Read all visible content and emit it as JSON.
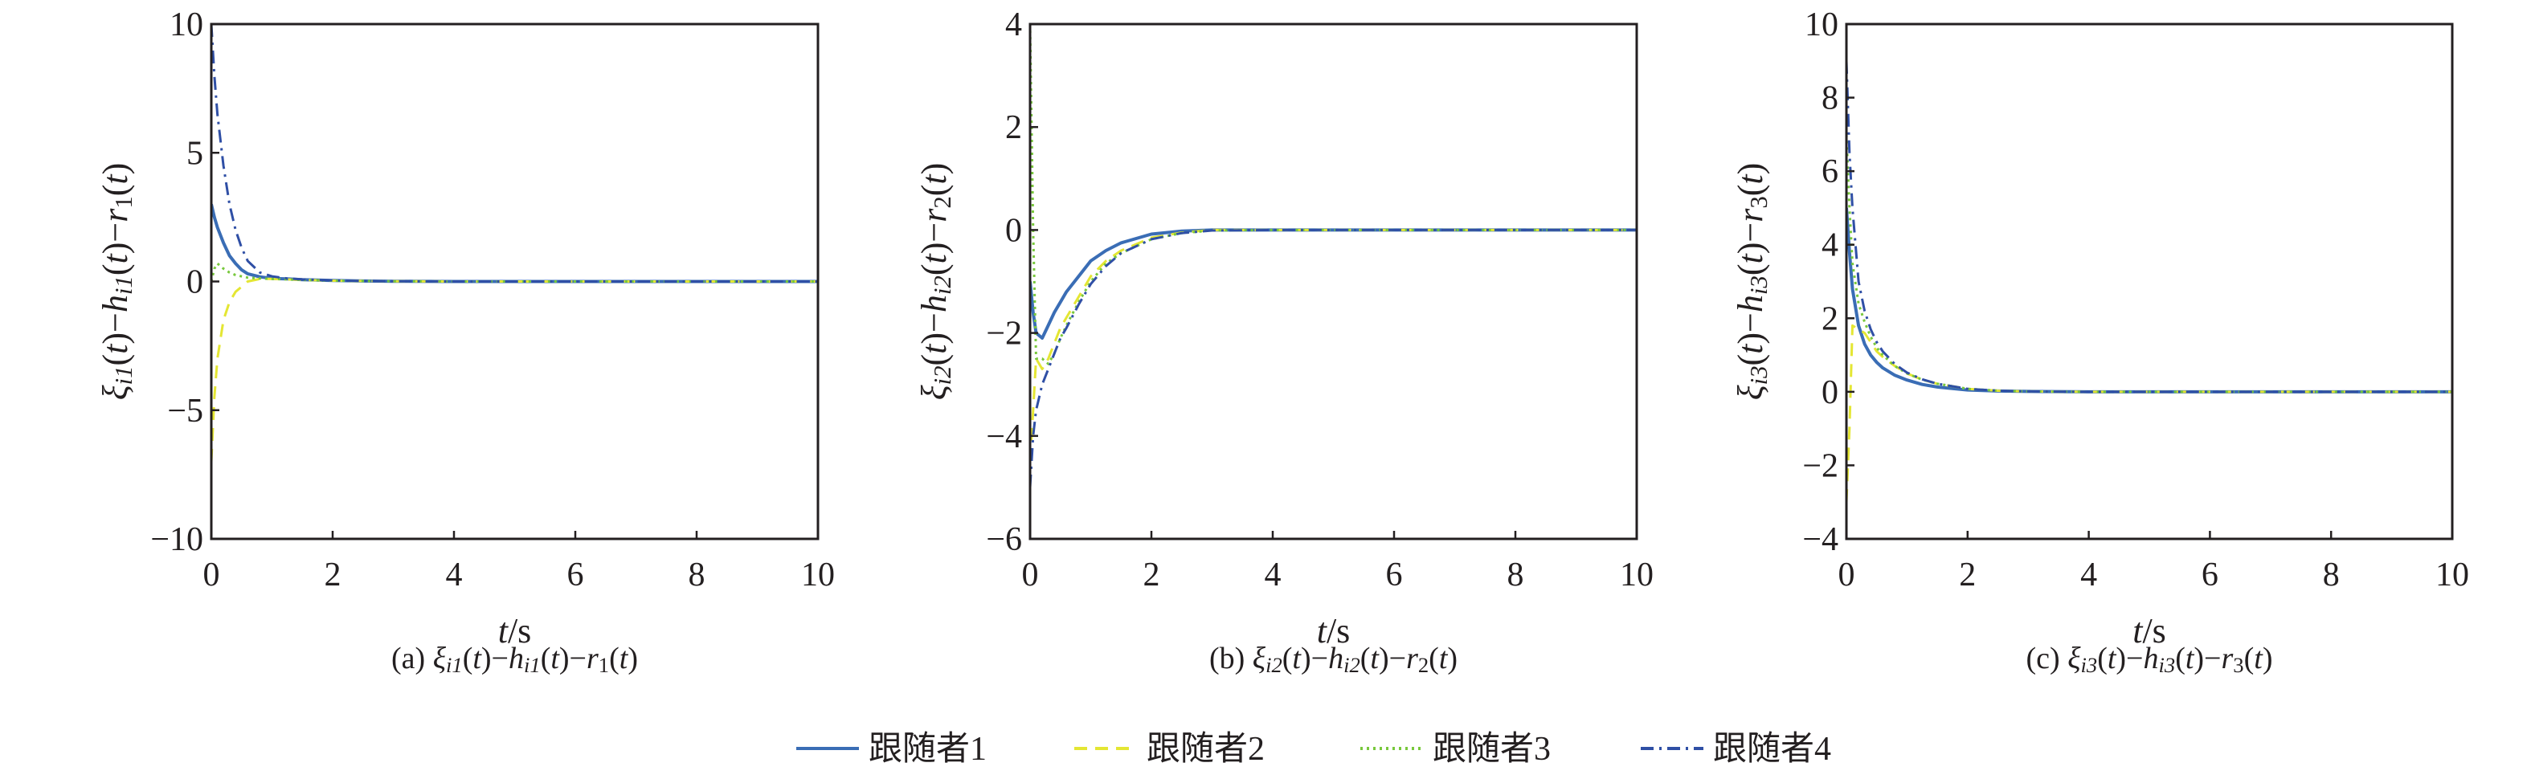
{
  "legend": {
    "placement": "bottom-center",
    "items": [
      {
        "label": "跟随者1",
        "color": "#3a6db5",
        "dash": "solid"
      },
      {
        "label": "跟随者2",
        "color": "#e4e633",
        "dash": "dashed"
      },
      {
        "label": "跟随者3",
        "color": "#78c83c",
        "dash": "dotted"
      },
      {
        "label": "跟随者4",
        "color": "#2f4fa5",
        "dash": "dashdot"
      }
    ]
  },
  "chart_data": [
    {
      "type": "line",
      "caption": [
        {
          "t": "(a) "
        },
        {
          "t": "ξ",
          "i": 1
        },
        {
          "t": "i1",
          "sub": 1,
          "i": 1
        },
        {
          "t": "("
        },
        {
          "t": "t",
          "i": 1
        },
        {
          "t": ")−"
        },
        {
          "t": "h",
          "i": 1
        },
        {
          "t": "i1",
          "sub": 1,
          "i": 1
        },
        {
          "t": "("
        },
        {
          "t": "t",
          "i": 1
        },
        {
          "t": ")−"
        },
        {
          "t": "r",
          "i": 1
        },
        {
          "t": "1",
          "sub": 1
        },
        {
          "t": "("
        },
        {
          "t": "t",
          "i": 1
        },
        {
          "t": ")"
        }
      ],
      "ylabel": [
        {
          "t": "ξ",
          "i": 1
        },
        {
          "t": "i1",
          "sub": 1,
          "i": 1
        },
        {
          "t": "("
        },
        {
          "t": "t",
          "i": 1
        },
        {
          "t": ")−"
        },
        {
          "t": "h",
          "i": 1
        },
        {
          "t": "i1",
          "sub": 1,
          "i": 1
        },
        {
          "t": "("
        },
        {
          "t": "t",
          "i": 1
        },
        {
          "t": ")−"
        },
        {
          "t": "r",
          "i": 1
        },
        {
          "t": "1",
          "sub": 1
        },
        {
          "t": "("
        },
        {
          "t": "t",
          "i": 1
        },
        {
          "t": ")"
        }
      ],
      "xlabel": [
        {
          "t": "t",
          "i": 1
        },
        {
          "t": "/s"
        }
      ],
      "xlim": [
        0,
        10
      ],
      "ylim": [
        -10,
        10
      ],
      "xticks": [
        "0",
        "2",
        "4",
        "6",
        "8",
        "10"
      ],
      "yticks": [
        "−10",
        "−5",
        "0",
        "5",
        "10"
      ],
      "yticks_values": [
        -10,
        -5,
        0,
        5,
        10
      ],
      "x": [
        0,
        0.05,
        0.1,
        0.2,
        0.3,
        0.4,
        0.5,
        0.6,
        0.8,
        1,
        1.25,
        1.5,
        2,
        2.5,
        3,
        4,
        6,
        8,
        10
      ],
      "series": [
        {
          "name": "跟随者1",
          "values": [
            3,
            2.5,
            2.1,
            1.5,
            1.0,
            0.7,
            0.45,
            0.3,
            0.18,
            0.12,
            0.1,
            0.07,
            0.04,
            0.02,
            0.01,
            0,
            0,
            0,
            0
          ]
        },
        {
          "name": "跟随者2",
          "values": [
            -7,
            -4.5,
            -3,
            -1.5,
            -0.8,
            -0.4,
            -0.2,
            0,
            0.1,
            0.1,
            0.08,
            0.06,
            0.03,
            0.02,
            0.01,
            0,
            0,
            0,
            0
          ]
        },
        {
          "name": "跟随者3",
          "values": [
            0,
            0.5,
            0.7,
            0.5,
            0.35,
            0.25,
            0.2,
            0.15,
            0.12,
            0.1,
            0.08,
            0.06,
            0.03,
            0.02,
            0.01,
            0,
            0,
            0,
            0
          ]
        },
        {
          "name": "跟随者4",
          "values": [
            10,
            8,
            6.5,
            4.5,
            3,
            2,
            1.3,
            0.8,
            0.35,
            0.2,
            0.12,
            0.08,
            0.04,
            0.02,
            0.01,
            0,
            0,
            0,
            0
          ]
        }
      ]
    },
    {
      "type": "line",
      "caption": [
        {
          "t": "(b) "
        },
        {
          "t": "ξ",
          "i": 1
        },
        {
          "t": "i2",
          "sub": 1,
          "i": 1
        },
        {
          "t": "("
        },
        {
          "t": "t",
          "i": 1
        },
        {
          "t": ")−"
        },
        {
          "t": "h",
          "i": 1
        },
        {
          "t": "i2",
          "sub": 1,
          "i": 1
        },
        {
          "t": "("
        },
        {
          "t": "t",
          "i": 1
        },
        {
          "t": ")−"
        },
        {
          "t": "r",
          "i": 1
        },
        {
          "t": "2",
          "sub": 1
        },
        {
          "t": "("
        },
        {
          "t": "t",
          "i": 1
        },
        {
          "t": ")"
        }
      ],
      "ylabel": [
        {
          "t": "ξ",
          "i": 1
        },
        {
          "t": "i2",
          "sub": 1,
          "i": 1
        },
        {
          "t": "("
        },
        {
          "t": "t",
          "i": 1
        },
        {
          "t": ")−"
        },
        {
          "t": "h",
          "i": 1
        },
        {
          "t": "i2",
          "sub": 1,
          "i": 1
        },
        {
          "t": "("
        },
        {
          "t": "t",
          "i": 1
        },
        {
          "t": ")−"
        },
        {
          "t": "r",
          "i": 1
        },
        {
          "t": "2",
          "sub": 1
        },
        {
          "t": "("
        },
        {
          "t": "t",
          "i": 1
        },
        {
          "t": ")"
        }
      ],
      "xlabel": [
        {
          "t": "t",
          "i": 1
        },
        {
          "t": "/s"
        }
      ],
      "xlim": [
        0,
        10
      ],
      "ylim": [
        -6,
        4
      ],
      "xticks": [
        "0",
        "2",
        "4",
        "6",
        "8",
        "10"
      ],
      "yticks": [
        "−6",
        "−4",
        "−2",
        "0",
        "2",
        "4"
      ],
      "yticks_values": [
        -6,
        -4,
        -2,
        0,
        2,
        4
      ],
      "x": [
        0,
        0.05,
        0.1,
        0.2,
        0.3,
        0.4,
        0.5,
        0.6,
        0.8,
        1,
        1.25,
        1.5,
        2,
        2.5,
        3,
        4,
        6,
        8,
        10
      ],
      "series": [
        {
          "name": "跟随者1",
          "values": [
            -1,
            -1.6,
            -2.0,
            -2.1,
            -1.85,
            -1.6,
            -1.4,
            -1.2,
            -0.9,
            -0.6,
            -0.4,
            -0.25,
            -0.08,
            -0.02,
            0,
            0,
            0,
            0,
            0
          ]
        },
        {
          "name": "跟随者2",
          "values": [
            -4.5,
            -3.5,
            -2.5,
            -2.7,
            -2.5,
            -2.2,
            -1.9,
            -1.7,
            -1.3,
            -0.9,
            -0.6,
            -0.4,
            -0.15,
            -0.05,
            0,
            0,
            0,
            0,
            0
          ]
        },
        {
          "name": "跟随者3",
          "values": [
            4,
            0,
            -2.5,
            -2.5,
            -2.6,
            -2.4,
            -2.1,
            -1.85,
            -1.4,
            -1.0,
            -0.65,
            -0.45,
            -0.18,
            -0.06,
            -0.01,
            0,
            0,
            0,
            0
          ]
        },
        {
          "name": "跟随者4",
          "values": [
            -5,
            -4,
            -3.5,
            -3.0,
            -2.7,
            -2.4,
            -2.1,
            -1.9,
            -1.45,
            -1.05,
            -0.7,
            -0.45,
            -0.18,
            -0.06,
            -0.01,
            0,
            0,
            0,
            0
          ]
        }
      ]
    },
    {
      "type": "line",
      "caption": [
        {
          "t": "(c) "
        },
        {
          "t": "ξ",
          "i": 1
        },
        {
          "t": "i3",
          "sub": 1,
          "i": 1
        },
        {
          "t": "("
        },
        {
          "t": "t",
          "i": 1
        },
        {
          "t": ")−"
        },
        {
          "t": "h",
          "i": 1
        },
        {
          "t": "i3",
          "sub": 1,
          "i": 1
        },
        {
          "t": "("
        },
        {
          "t": "t",
          "i": 1
        },
        {
          "t": ")−"
        },
        {
          "t": "r",
          "i": 1
        },
        {
          "t": "3",
          "sub": 1
        },
        {
          "t": "("
        },
        {
          "t": "t",
          "i": 1
        },
        {
          "t": ")"
        }
      ],
      "ylabel": [
        {
          "t": "ξ",
          "i": 1
        },
        {
          "t": "i3",
          "sub": 1,
          "i": 1
        },
        {
          "t": "("
        },
        {
          "t": "t",
          "i": 1
        },
        {
          "t": ")−"
        },
        {
          "t": "h",
          "i": 1
        },
        {
          "t": "i3",
          "sub": 1,
          "i": 1
        },
        {
          "t": "("
        },
        {
          "t": "t",
          "i": 1
        },
        {
          "t": ")−"
        },
        {
          "t": "r",
          "i": 1
        },
        {
          "t": "3",
          "sub": 1
        },
        {
          "t": "("
        },
        {
          "t": "t",
          "i": 1
        },
        {
          "t": ")"
        }
      ],
      "xlabel": [
        {
          "t": "t",
          "i": 1
        },
        {
          "t": "/s"
        }
      ],
      "xlim": [
        0,
        10
      ],
      "ylim": [
        -4,
        10
      ],
      "xticks": [
        "0",
        "2",
        "4",
        "6",
        "8",
        "10"
      ],
      "yticks": [
        "−4",
        "−2",
        "0",
        "2",
        "4",
        "6",
        "8",
        "10"
      ],
      "yticks_values": [
        -4,
        -2,
        0,
        2,
        4,
        6,
        8,
        10
      ],
      "x": [
        0,
        0.05,
        0.1,
        0.2,
        0.3,
        0.4,
        0.5,
        0.6,
        0.8,
        1,
        1.25,
        1.5,
        2,
        2.5,
        3,
        4,
        6,
        8,
        10
      ],
      "series": [
        {
          "name": "跟随者1",
          "values": [
            5,
            3.8,
            2.8,
            1.8,
            1.3,
            1.0,
            0.8,
            0.65,
            0.45,
            0.32,
            0.2,
            0.13,
            0.05,
            0.02,
            0.01,
            0,
            0,
            0,
            0
          ]
        },
        {
          "name": "跟随者2",
          "values": [
            -3,
            -1,
            1.8,
            1.7,
            1.6,
            1.35,
            1.1,
            0.95,
            0.7,
            0.5,
            0.33,
            0.22,
            0.08,
            0.03,
            0.01,
            0,
            0,
            0,
            0
          ]
        },
        {
          "name": "跟随者3",
          "values": [
            7,
            5,
            3.5,
            2.4,
            1.9,
            1.5,
            1.2,
            1.0,
            0.7,
            0.5,
            0.33,
            0.22,
            0.08,
            0.03,
            0.01,
            0,
            0,
            0,
            0
          ]
        },
        {
          "name": "跟随者4",
          "values": [
            9,
            6.5,
            5,
            3,
            2.2,
            1.7,
            1.35,
            1.1,
            0.75,
            0.52,
            0.34,
            0.22,
            0.08,
            0.03,
            0.01,
            0,
            0,
            0,
            0
          ]
        }
      ]
    }
  ]
}
